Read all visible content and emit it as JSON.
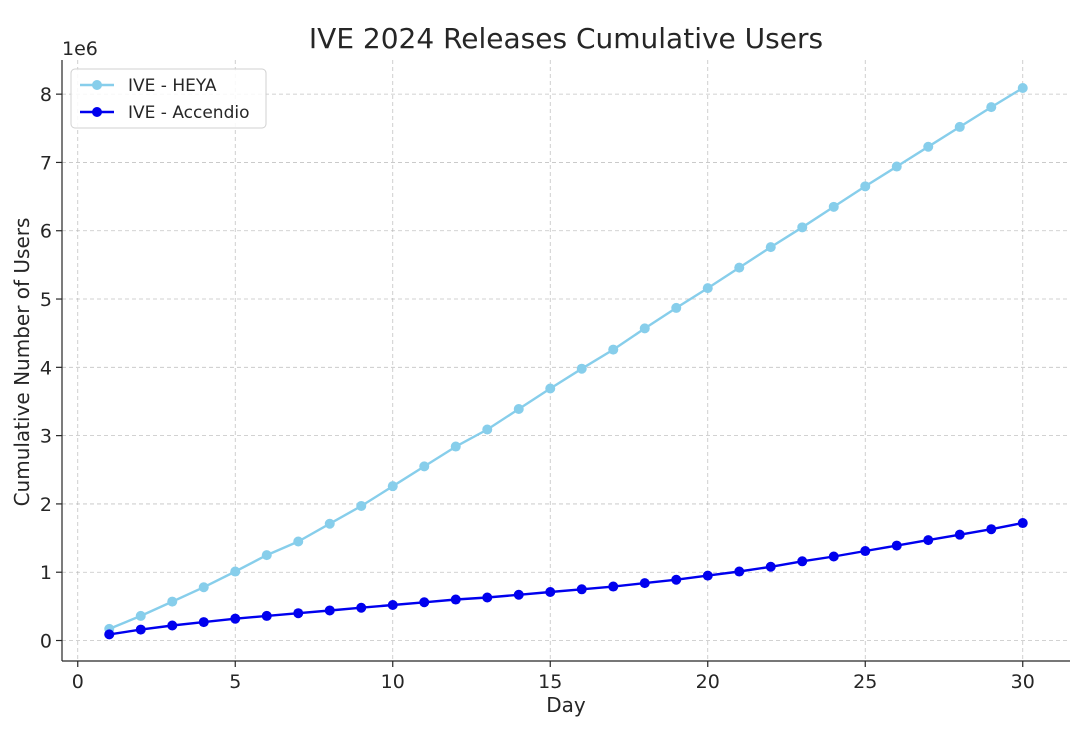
{
  "chart_data": {
    "type": "line",
    "title": "IVE 2024 Releases Cumulative Users",
    "xlabel": "Day",
    "ylabel": "Cumulative Number of Users",
    "y_offset_label": "1e6",
    "xlim": [
      -0.5,
      31.5
    ],
    "ylim": [
      -300000,
      8500000
    ],
    "x_ticks": [
      0,
      5,
      10,
      15,
      20,
      25,
      30
    ],
    "y_ticks": [
      0,
      1000000,
      2000000,
      3000000,
      4000000,
      5000000,
      6000000,
      7000000,
      8000000
    ],
    "y_tick_labels": [
      "0",
      "1",
      "2",
      "3",
      "4",
      "5",
      "6",
      "7",
      "8"
    ],
    "grid": true,
    "legend_position": "top-left",
    "x": [
      1,
      2,
      3,
      4,
      5,
      6,
      7,
      8,
      9,
      10,
      11,
      12,
      13,
      14,
      15,
      16,
      17,
      18,
      19,
      20,
      21,
      22,
      23,
      24,
      25,
      26,
      27,
      28,
      29,
      30
    ],
    "series": [
      {
        "name": "IVE - HEYA",
        "color": "#87ceeb",
        "values": [
          170000,
          360000,
          570000,
          780000,
          1010000,
          1250000,
          1450000,
          1710000,
          1970000,
          2260000,
          2550000,
          2840000,
          3090000,
          3390000,
          3690000,
          3980000,
          4260000,
          4570000,
          4870000,
          5160000,
          5460000,
          5760000,
          6050000,
          6350000,
          6650000,
          6940000,
          7230000,
          7520000,
          7810000,
          8090000
        ]
      },
      {
        "name": "IVE - Accendio",
        "color": "#0000ee",
        "values": [
          90000,
          160000,
          220000,
          270000,
          320000,
          360000,
          400000,
          440000,
          480000,
          520000,
          560000,
          600000,
          630000,
          670000,
          710000,
          750000,
          790000,
          840000,
          890000,
          950000,
          1010000,
          1080000,
          1160000,
          1230000,
          1310000,
          1390000,
          1470000,
          1550000,
          1630000,
          1720000
        ]
      }
    ]
  }
}
